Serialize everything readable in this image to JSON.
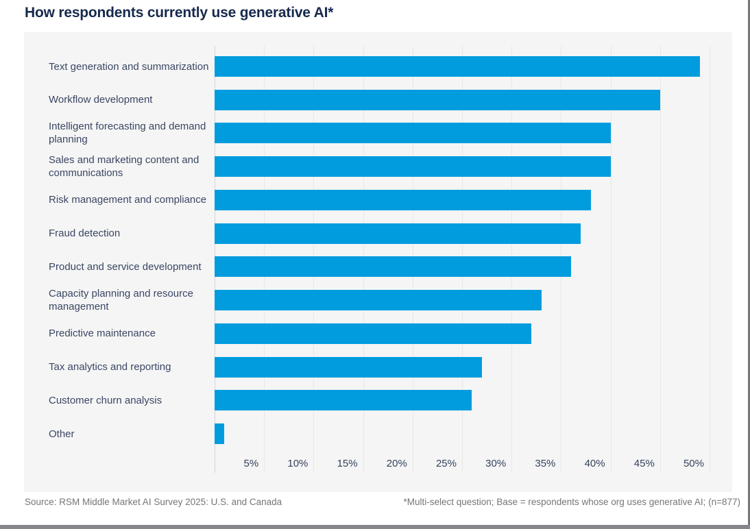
{
  "chart": {
    "title": "How respondents currently use generative AI*"
  },
  "chart_data": {
    "type": "bar",
    "orientation": "horizontal",
    "title": "How respondents currently use generative AI*",
    "categories": [
      "Text generation and summarization",
      "Workflow development",
      "Intelligent forecasting and demand planning",
      "Sales and marketing content and communications",
      "Risk management and compliance",
      "Fraud detection",
      "Product and service development",
      "Capacity planning and resource management",
      "Predictive maintenance",
      "Tax analytics and reporting",
      "Customer churn analysis",
      "Other"
    ],
    "values": [
      49,
      45,
      40,
      40,
      38,
      37,
      36,
      33,
      32,
      27,
      26,
      1
    ],
    "unit": "%",
    "xlim": [
      0,
      50
    ],
    "x_tick_step": 5,
    "x_tick_labels": [
      "5%",
      "10%",
      "15%",
      "20%",
      "25%",
      "30%",
      "35%",
      "40%",
      "45%",
      "50%"
    ],
    "grid": true,
    "legend": false,
    "xlabel": "",
    "ylabel": ""
  },
  "colors": {
    "bar": "#009CDE",
    "title": "#16294d",
    "label": "#3a4663",
    "tick": "#33415c",
    "panel_bg": "#f5f5f5",
    "gridline": "#e7e7e7",
    "axis_line": "#d4d4d4",
    "footer_text": "#757575",
    "page_edge": "#85878a"
  },
  "footer": {
    "source": "Source: RSM Middle Market AI Survey 2025: U.S. and Canada",
    "footnote": "*Multi-select question; Base = respondents whose org uses generative AI; (n=877)"
  }
}
